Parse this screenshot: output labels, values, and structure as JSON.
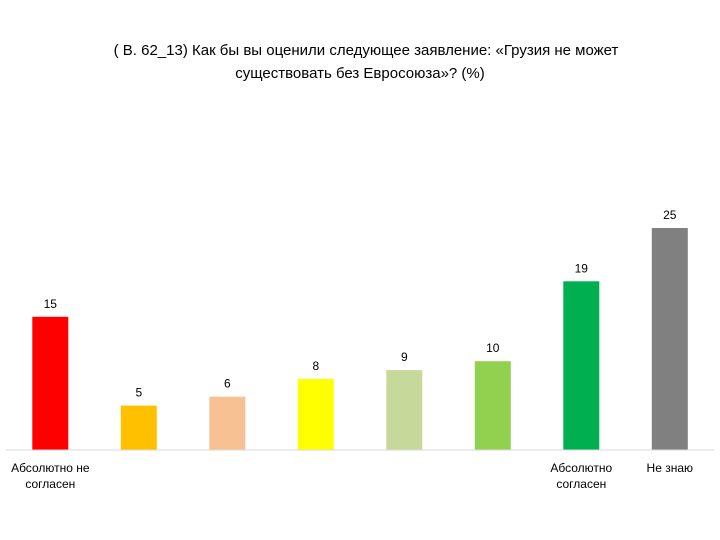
{
  "chart_data": {
    "type": "bar",
    "title_lines": [
      "( В. 62_13)  Как бы вы оценили следующее заявление: «Грузия не может",
      "существовать без Евросоюза»? (%)"
    ],
    "categories": [
      "Абсолютно не согласен",
      "",
      "",
      "",
      "",
      "",
      "Абсолютно согласен",
      "Не знаю"
    ],
    "category_label_lines": [
      [
        "Абсолютно не",
        "согласен"
      ],
      [],
      [],
      [],
      [],
      [],
      [
        "Абсолютно",
        "согласен"
      ],
      [
        "Не знаю"
      ]
    ],
    "values": [
      15,
      5,
      6,
      8,
      9,
      10,
      19,
      25
    ],
    "value_labels": [
      "15",
      "5",
      "6",
      "8",
      "9",
      "10",
      "19",
      "25"
    ],
    "colors": [
      "#ff0000",
      "#ffc000",
      "#f8c193",
      "#ffff00",
      "#c7d89b",
      "#92d050",
      "#00b050",
      "#808080"
    ],
    "ylim": [
      0,
      25
    ],
    "grid": false,
    "legend": "none"
  }
}
